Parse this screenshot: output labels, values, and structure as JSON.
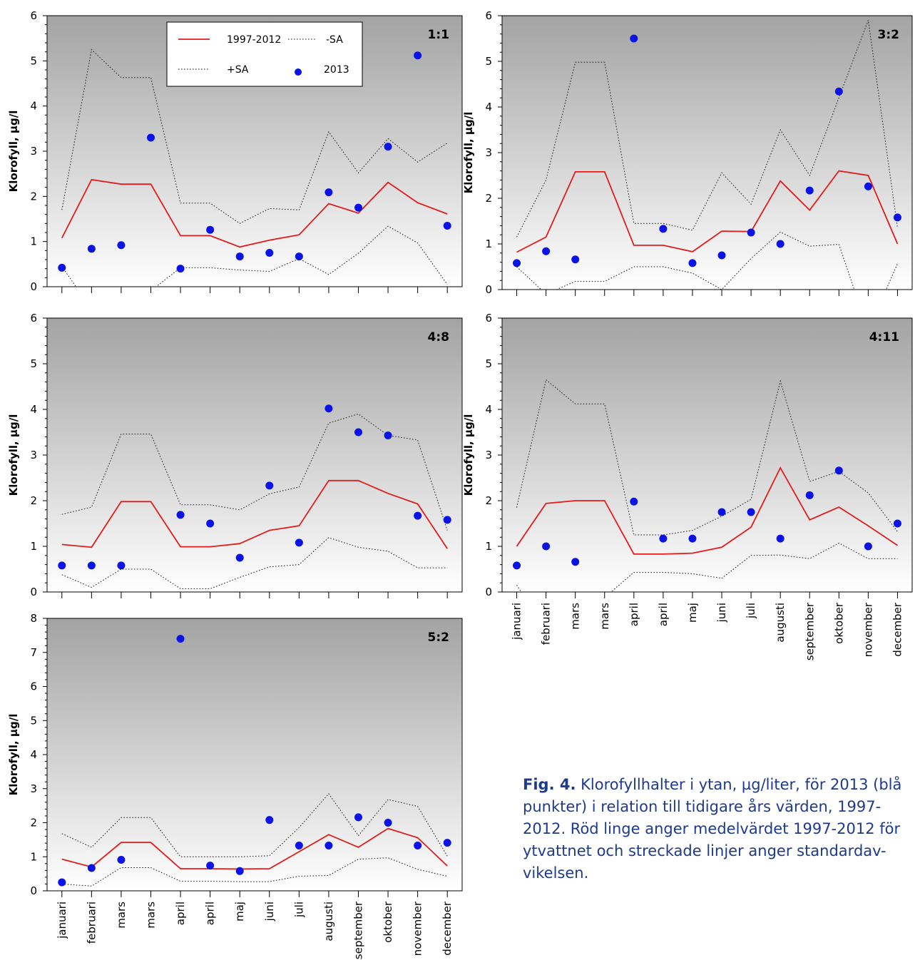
{
  "months": [
    "januari",
    "februari",
    "mars",
    "mars",
    "april",
    "april",
    "maj",
    "juni",
    "juli",
    "augusti",
    "september",
    "oktober",
    "november",
    "december"
  ],
  "ylabel": "Klorofyll, µg/l",
  "legend": {
    "mean": "1997-2012",
    "minus_sd": "-SA",
    "plus_sd": "+SA",
    "obs": "2013"
  },
  "colors": {
    "mean": "#e31b1b",
    "obs": "#0a13e6",
    "sd": "#1a1a1a",
    "bg_top": "#a3a3a3",
    "bg_bottom": "#ffffff"
  },
  "caption": {
    "label": "Fig. 4.",
    "text": " Klorofyllhalter i ytan, µg/liter, för 2013 (blå punkter) i relation till tidigare års värden, 1997-2012. Röd linge anger medelvärdet 1997-2012 för ytvattnet och streckade linjer anger standardav-vikelsen."
  },
  "chart_data": [
    {
      "type": "line",
      "station": "1:1",
      "ylim": [
        0,
        6
      ],
      "yticks": [
        0,
        1,
        2,
        3,
        4,
        5,
        6
      ],
      "show_legend": true,
      "show_xlabels": false,
      "series": [
        {
          "name": "1997-2012",
          "values": [
            1.08,
            2.37,
            2.27,
            2.27,
            1.13,
            1.13,
            0.88,
            1.03,
            1.15,
            1.84,
            1.63,
            2.31,
            1.86,
            1.61
          ]
        },
        {
          "name": "+SA",
          "values": [
            1.7,
            5.25,
            4.63,
            4.63,
            1.85,
            1.85,
            1.4,
            1.73,
            1.7,
            3.43,
            2.52,
            3.28,
            2.76,
            3.18
          ]
        },
        {
          "name": "-SA",
          "values": [
            0.45,
            -0.5,
            -0.09,
            -0.09,
            0.42,
            0.42,
            0.37,
            0.34,
            0.62,
            0.27,
            0.74,
            1.34,
            0.97,
            0.05
          ]
        },
        {
          "name": "2013",
          "values": [
            0.42,
            0.84,
            0.92,
            3.3,
            0.4,
            1.26,
            0.67,
            0.75,
            0.67,
            2.09,
            1.75,
            3.1,
            5.12,
            1.35
          ]
        }
      ]
    },
    {
      "type": "line",
      "station": "3:2",
      "ylim": [
        0,
        6
      ],
      "yticks": [
        0,
        1,
        2,
        3,
        4,
        5,
        6
      ],
      "show_legend": false,
      "show_xlabels": false,
      "series": [
        {
          "name": "1997-2012",
          "values": [
            0.82,
            1.15,
            2.58,
            2.58,
            0.97,
            0.97,
            0.83,
            1.28,
            1.27,
            2.38,
            1.74,
            2.6,
            2.5,
            1.0
          ]
        },
        {
          "name": "+SA",
          "values": [
            1.15,
            2.4,
            4.98,
            4.98,
            1.45,
            1.45,
            1.3,
            2.56,
            1.87,
            3.5,
            2.5,
            4.2,
            5.9,
            1.35
          ]
        },
        {
          "name": "-SA",
          "values": [
            0.5,
            -0.1,
            0.18,
            0.18,
            0.5,
            0.5,
            0.36,
            0.0,
            0.68,
            1.26,
            0.95,
            0.99,
            -0.9,
            0.57
          ]
        },
        {
          "name": "2013",
          "values": [
            0.58,
            0.84,
            0.66,
            5.5,
            1.33,
            0.58,
            0.75,
            1.25,
            1.0,
            2.17,
            4.34,
            2.26,
            1.58
          ]
        }
      ],
      "obs_positions": [
        0,
        1,
        2,
        4,
        5,
        6,
        7,
        8,
        9,
        10,
        11,
        12,
        13
      ]
    },
    {
      "type": "line",
      "station": "4:8",
      "ylim": [
        0,
        6
      ],
      "yticks": [
        0,
        1,
        2,
        3,
        4,
        5,
        6
      ],
      "show_legend": false,
      "show_xlabels": false,
      "series": [
        {
          "name": "1997-2012",
          "values": [
            1.04,
            0.98,
            1.98,
            1.98,
            0.99,
            0.99,
            1.06,
            1.35,
            1.45,
            2.44,
            2.44,
            2.16,
            1.93,
            0.95
          ]
        },
        {
          "name": "+SA",
          "values": [
            1.7,
            1.86,
            3.46,
            3.46,
            1.91,
            1.91,
            1.8,
            2.15,
            2.3,
            3.7,
            3.9,
            3.43,
            3.33,
            1.35
          ]
        },
        {
          "name": "-SA",
          "values": [
            0.38,
            0.1,
            0.5,
            0.5,
            0.07,
            0.07,
            0.32,
            0.55,
            0.6,
            1.19,
            0.98,
            0.89,
            0.53,
            0.53
          ]
        },
        {
          "name": "2013",
          "values": [
            0.58,
            0.58,
            0.58,
            1.69,
            1.5,
            0.75,
            2.33,
            1.08,
            4.02,
            3.5,
            3.43,
            1.67,
            1.58
          ]
        }
      ],
      "obs_positions": [
        0,
        1,
        2,
        4,
        5,
        6,
        7,
        8,
        9,
        10,
        11,
        12,
        13
      ]
    },
    {
      "type": "line",
      "station": "4:11",
      "ylim": [
        0,
        6
      ],
      "yticks": [
        0,
        1,
        2,
        3,
        4,
        5,
        6
      ],
      "show_legend": false,
      "show_xlabels": true,
      "series": [
        {
          "name": "1997-2012",
          "values": [
            1.0,
            1.94,
            2.0,
            2.0,
            0.83,
            0.83,
            0.85,
            0.98,
            1.42,
            2.72,
            1.58,
            1.86,
            1.45,
            1.02
          ]
        },
        {
          "name": "+SA",
          "values": [
            1.85,
            4.65,
            4.12,
            4.12,
            1.25,
            1.25,
            1.35,
            1.66,
            2.03,
            4.62,
            2.42,
            2.64,
            2.17,
            1.32
          ]
        },
        {
          "name": "-SA",
          "values": [
            0.15,
            -0.8,
            -0.12,
            -0.12,
            0.43,
            0.43,
            0.4,
            0.3,
            0.8,
            0.81,
            0.73,
            1.07,
            0.73,
            0.73
          ]
        },
        {
          "name": "2013",
          "values": [
            0.58,
            1.0,
            0.66,
            1.98,
            1.17,
            1.17,
            1.75,
            1.75,
            1.17,
            2.12,
            2.66,
            1.0,
            1.5
          ]
        }
      ],
      "obs_positions": [
        0,
        1,
        2,
        4,
        5,
        6,
        7,
        8,
        9,
        10,
        11,
        12,
        13
      ]
    },
    {
      "type": "line",
      "station": "5:2",
      "ylim": [
        0,
        8
      ],
      "yticks": [
        0,
        1,
        2,
        3,
        4,
        5,
        6,
        7,
        8
      ],
      "show_legend": false,
      "show_xlabels": true,
      "series": [
        {
          "name": "1997-2012",
          "values": [
            0.93,
            0.7,
            1.42,
            1.42,
            0.65,
            0.65,
            0.64,
            0.65,
            1.15,
            1.65,
            1.28,
            1.83,
            1.56,
            0.73
          ]
        },
        {
          "name": "+SA",
          "values": [
            1.68,
            1.28,
            2.15,
            2.15,
            1.0,
            1.0,
            1.0,
            1.03,
            1.86,
            2.85,
            1.62,
            2.68,
            2.48,
            1.02
          ]
        },
        {
          "name": "-SA",
          "values": [
            0.2,
            0.14,
            0.68,
            0.68,
            0.28,
            0.28,
            0.27,
            0.27,
            0.43,
            0.45,
            0.93,
            0.97,
            0.63,
            0.43
          ]
        },
        {
          "name": "2013",
          "values": [
            0.25,
            0.67,
            0.91,
            7.4,
            0.74,
            0.58,
            2.08,
            1.33,
            1.33,
            2.16,
            2.0,
            1.33,
            1.41
          ]
        }
      ],
      "obs_positions": [
        0,
        1,
        2,
        4,
        5,
        6,
        7,
        8,
        9,
        10,
        11,
        12,
        13
      ]
    }
  ]
}
